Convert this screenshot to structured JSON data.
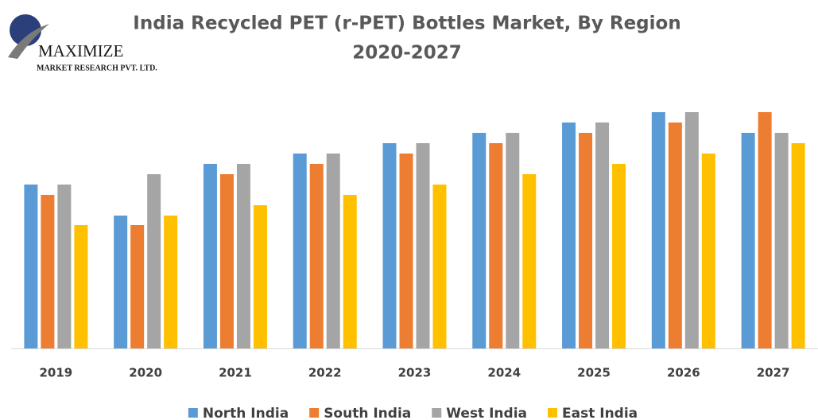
{
  "logo": {
    "name": "MAXIMIZE",
    "tagline": "MARKET RESEARCH PVT. LTD."
  },
  "chart_data": {
    "type": "bar",
    "title": "India Recycled PET (r-PET) Bottles Market, By Region",
    "subtitle": "2020-2027",
    "categories": [
      "2019",
      "2020",
      "2021",
      "2022",
      "2023",
      "2024",
      "2025",
      "2026",
      "2027"
    ],
    "series": [
      {
        "name": "North India",
        "color": "#5b9bd5",
        "values": [
          206,
          167,
          232,
          245,
          258,
          271,
          284,
          297,
          271
        ]
      },
      {
        "name": "South India",
        "color": "#ed7d31",
        "values": [
          193,
          155,
          219,
          232,
          245,
          258,
          271,
          284,
          297
        ]
      },
      {
        "name": "West India",
        "color": "#a5a5a5",
        "values": [
          206,
          219,
          232,
          245,
          258,
          271,
          284,
          297,
          271
        ]
      },
      {
        "name": "East India",
        "color": "#ffc000",
        "values": [
          155,
          167,
          180,
          193,
          206,
          219,
          232,
          245,
          258
        ]
      }
    ],
    "ylim": [
      0,
      310
    ],
    "legend": "bottom"
  }
}
